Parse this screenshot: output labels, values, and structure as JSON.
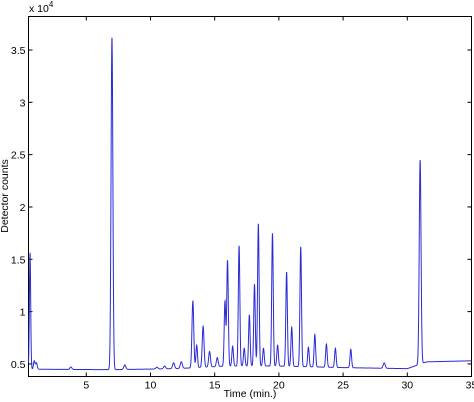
{
  "chart_data": {
    "type": "line",
    "title": "",
    "xlabel": "Time (min.)",
    "ylabel": "Detector counts",
    "y_scale_exponent": "x 10",
    "y_scale_power": "4",
    "xlim": [
      0.5,
      35
    ],
    "ylim": [
      3800,
      38200
    ],
    "x_ticks": [
      5,
      10,
      15,
      20,
      25,
      30,
      35
    ],
    "y_ticks": [
      5000,
      10000,
      15000,
      20000,
      25000,
      30000,
      35000
    ],
    "x_tick_labels": [
      "5",
      "10",
      "15",
      "20",
      "25",
      "30",
      "35"
    ],
    "y_tick_labels": [
      "0.5",
      "1",
      "1.5",
      "2",
      "2.5",
      "3",
      "3.5"
    ],
    "grid": false,
    "line_color": "#2b2bd6",
    "baseline": [
      [
        0.5,
        4500
      ],
      [
        7,
        4450
      ],
      [
        12,
        4550
      ],
      [
        16,
        4800
      ],
      [
        20,
        4800
      ],
      [
        25,
        4650
      ],
      [
        30,
        4550
      ],
      [
        31.5,
        5200
      ],
      [
        35,
        5300
      ]
    ],
    "peaks": [
      {
        "x": 0.62,
        "y": 15600,
        "w": 0.05
      },
      {
        "x": 0.95,
        "y": 5300,
        "w": 0.06
      },
      {
        "x": 1.12,
        "y": 5100,
        "w": 0.06
      },
      {
        "x": 3.8,
        "y": 4700,
        "w": 0.08
      },
      {
        "x": 7.0,
        "y": 36200,
        "w": 0.07
      },
      {
        "x": 8.0,
        "y": 4900,
        "w": 0.08
      },
      {
        "x": 10.5,
        "y": 4700,
        "w": 0.08
      },
      {
        "x": 11.1,
        "y": 4800,
        "w": 0.08
      },
      {
        "x": 11.8,
        "y": 5100,
        "w": 0.08
      },
      {
        "x": 12.4,
        "y": 5200,
        "w": 0.08
      },
      {
        "x": 13.3,
        "y": 11000,
        "w": 0.07
      },
      {
        "x": 13.6,
        "y": 6800,
        "w": 0.06
      },
      {
        "x": 14.1,
        "y": 8600,
        "w": 0.07
      },
      {
        "x": 14.6,
        "y": 6200,
        "w": 0.07
      },
      {
        "x": 15.2,
        "y": 5600,
        "w": 0.07
      },
      {
        "x": 15.8,
        "y": 11000,
        "w": 0.06
      },
      {
        "x": 16.0,
        "y": 14900,
        "w": 0.06
      },
      {
        "x": 16.4,
        "y": 6700,
        "w": 0.06
      },
      {
        "x": 16.9,
        "y": 16300,
        "w": 0.06
      },
      {
        "x": 17.3,
        "y": 6500,
        "w": 0.06
      },
      {
        "x": 17.7,
        "y": 9700,
        "w": 0.06
      },
      {
        "x": 18.1,
        "y": 12600,
        "w": 0.06
      },
      {
        "x": 18.4,
        "y": 18400,
        "w": 0.06
      },
      {
        "x": 18.8,
        "y": 6500,
        "w": 0.06
      },
      {
        "x": 19.5,
        "y": 17500,
        "w": 0.06
      },
      {
        "x": 19.9,
        "y": 6800,
        "w": 0.06
      },
      {
        "x": 20.6,
        "y": 13800,
        "w": 0.06
      },
      {
        "x": 21.0,
        "y": 8500,
        "w": 0.06
      },
      {
        "x": 21.7,
        "y": 16200,
        "w": 0.06
      },
      {
        "x": 22.3,
        "y": 6600,
        "w": 0.06
      },
      {
        "x": 22.8,
        "y": 7800,
        "w": 0.06
      },
      {
        "x": 23.7,
        "y": 6900,
        "w": 0.06
      },
      {
        "x": 24.4,
        "y": 6500,
        "w": 0.06
      },
      {
        "x": 25.6,
        "y": 6400,
        "w": 0.06
      },
      {
        "x": 28.2,
        "y": 5100,
        "w": 0.08
      },
      {
        "x": 31.0,
        "y": 24500,
        "w": 0.07
      }
    ]
  }
}
